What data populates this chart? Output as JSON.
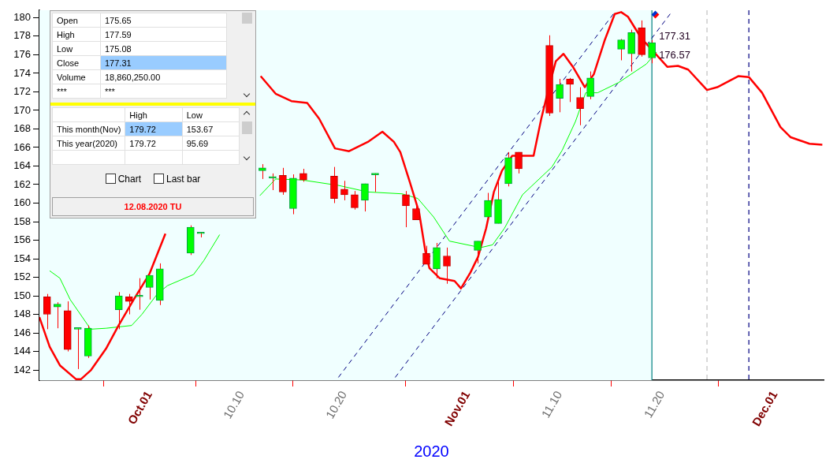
{
  "chart_data": {
    "type": "candlestick",
    "xlabel": "2020",
    "x": [
      "2020-09-21",
      "2020-09-22",
      "2020-09-23",
      "2020-09-24",
      "2020-09-25",
      "2020-09-28",
      "2020-09-29",
      "2020-09-30",
      "2020-10-01",
      "2020-10-02",
      "2020-10-05",
      "2020-10-06",
      "2020-10-12",
      "2020-10-13",
      "2020-10-14",
      "2020-10-15",
      "2020-10-16",
      "2020-10-19",
      "2020-10-20",
      "2020-10-21",
      "2020-10-22",
      "2020-10-23",
      "2020-10-26",
      "2020-10-27",
      "2020-10-28",
      "2020-10-29",
      "2020-10-30",
      "2020-11-02",
      "2020-11-03",
      "2020-11-04",
      "2020-11-05",
      "2020-11-06",
      "2020-11-09",
      "2020-11-10",
      "2020-11-11",
      "2020-11-12",
      "2020-11-13",
      "2020-11-16",
      "2020-11-17",
      "2020-11-18",
      "2020-11-19"
    ],
    "ohlc": [
      [
        149.9,
        150.2,
        146.4,
        148.0
      ],
      [
        148.8,
        149.3,
        146.5,
        149.1
      ],
      [
        148.4,
        149.4,
        144.0,
        144.2
      ],
      [
        146.4,
        146.5,
        142.1,
        146.4
      ],
      [
        143.5,
        146.8,
        143.3,
        146.5
      ],
      [
        148.5,
        150.4,
        146.4,
        150.0
      ],
      [
        149.9,
        150.2,
        148.0,
        149.4
      ],
      [
        149.9,
        151.9,
        148.5,
        149.9
      ],
      [
        150.9,
        152.2,
        149.6,
        152.2
      ],
      [
        149.5,
        153.5,
        149.0,
        152.9
      ],
      [
        154.6,
        157.6,
        154.4,
        157.4
      ],
      [
        156.7,
        156.8,
        156.3,
        156.7
      ],
      [
        163.5,
        164.2,
        162.6,
        163.8
      ],
      [
        162.7,
        163.2,
        161.4,
        162.7
      ],
      [
        163.0,
        163.8,
        160.9,
        161.2
      ],
      [
        159.4,
        163.1,
        158.8,
        162.7
      ],
      [
        163.2,
        163.7,
        162.3,
        162.5
      ],
      [
        162.9,
        163.9,
        160.0,
        160.5
      ],
      [
        161.5,
        162.4,
        160.3,
        160.9
      ],
      [
        160.9,
        161.3,
        159.3,
        159.5
      ],
      [
        160.3,
        162.1,
        159.1,
        162.1
      ],
      [
        163.05,
        163.2,
        161.2,
        163.05
      ],
      [
        160.9,
        161.3,
        157.4,
        159.7
      ],
      [
        159.4,
        160.0,
        158.2,
        158.2
      ],
      [
        154.6,
        155.4,
        153.4,
        153.4
      ],
      [
        152.9,
        155.7,
        151.9,
        155.2
      ],
      [
        154.3,
        155.2,
        151.3,
        153.2
      ],
      [
        154.9,
        155.9,
        153.5,
        155.9
      ],
      [
        158.5,
        161.1,
        158.0,
        160.3
      ],
      [
        157.8,
        162.3,
        157.8,
        160.4
      ],
      [
        162.1,
        165.5,
        161.8,
        164.9
      ],
      [
        165.5,
        165.5,
        163.2,
        163.7
      ],
      [
        177.0,
        178.1,
        169.4,
        169.7
      ],
      [
        171.3,
        173.4,
        169.8,
        172.8
      ],
      [
        173.4,
        173.5,
        170.9,
        172.8
      ],
      [
        171.4,
        172.5,
        168.4,
        170.2
      ],
      [
        171.5,
        174.2,
        171.2,
        173.5
      ],
      [
        176.6,
        177.7,
        175.4,
        177.6
      ],
      [
        176.1,
        178.7,
        174.2,
        178.4
      ],
      [
        178.9,
        179.7,
        175.8,
        176.0
      ],
      [
        175.65,
        177.59,
        175.08,
        177.31
      ]
    ],
    "series": [
      {
        "type": "line",
        "color": "#ff0000",
        "line_style": "solid",
        "x": [
          "2020-09-20T06:00",
          "2020-09-21T06:00",
          "2020-09-22T06:00",
          "2020-09-23T20:00",
          "2020-09-24T07:00",
          "2020-09-25T07:00",
          "2020-09-26T18:00",
          "2020-09-27T22:00",
          "2020-09-29T11:00",
          "2020-10-01",
          "2020-10-02T13:00",
          "2020-10-07",
          "2020-10-11T20:00",
          "2020-10-13T07:00",
          "2020-10-14T20:00",
          "2020-10-16T09:00",
          "2020-10-17T13:00",
          "2020-10-19T02:00",
          "2020-10-20T11:00",
          "2020-10-22T07:00",
          "2020-10-23T17:00",
          "2020-10-24T20:00",
          "2020-10-25T11:00",
          "2020-10-26T09:00",
          "2020-10-27T07:00",
          "2020-10-27T22:00",
          "2020-10-28T07:00",
          "2020-10-29T07:00",
          "2020-10-30T18:00",
          "2020-10-31T09:00",
          "2020-11-01T07:00",
          "2020-11-02T01:00",
          "2020-11-02T20:00",
          "2020-11-03T14:00",
          "2020-11-04T09:00",
          "2020-11-05T09:00",
          "2020-11-07T11:00",
          "2020-11-08T05:00",
          "2020-11-08T23:00",
          "2020-11-09T15:00",
          "2020-11-10T09:00",
          "2020-11-11T07:00",
          "2020-11-12T11:00",
          "2020-11-13T08:00",
          "2020-11-14T09:00",
          "2020-11-15T09:00",
          "2020-11-16",
          "2020-11-16T16:00",
          "2020-11-17T23:00",
          "2020-11-20T12:00",
          "2020-11-21T13:00",
          "2020-11-22T13:00",
          "2020-11-24T09:00",
          "2020-11-25T09:00",
          "2020-11-27T11:00",
          "2020-11-28T11:00",
          "2020-11-29T18:00",
          "2020-12-01T13:00",
          "2020-12-02T13:00",
          "2020-12-04T09:00",
          "2020-12-05T15:00"
        ],
        "values": [
          147.7,
          144.5,
          142.5,
          141.0,
          141.0,
          142.0,
          144.3,
          146.7,
          149.6,
          152.4,
          156.7,
          null,
          173.7,
          171.8,
          171.0,
          170.8,
          169.1,
          165.9,
          165.6,
          166.6,
          167.7,
          166.6,
          165.5,
          162.3,
          159.0,
          154.7,
          153.0,
          151.9,
          151.6,
          150.8,
          152.5,
          154.2,
          157.3,
          161.2,
          163.5,
          165.1,
          165.1,
          169.1,
          172.5,
          175.3,
          176.1,
          174.7,
          172.5,
          173.9,
          177.5,
          180.4,
          180.6,
          180.1,
          177.8,
          174.7,
          174.8,
          174.4,
          172.2,
          172.5,
          173.7,
          173.6,
          171.9,
          168.2,
          167.1,
          166.4,
          166.3
        ]
      },
      {
        "type": "line",
        "color": "#00ff00",
        "line_style": "solid",
        "x": [
          "2020-09-21T06:00",
          "2020-09-22T06:00",
          "2020-09-23T06:00",
          "2020-09-25T06:00",
          "2020-09-26T18:00",
          "2020-09-29T06:00",
          "2020-09-30T06:00",
          "2020-10-01T18:00",
          "2020-10-02T18:00",
          "2020-10-05T07:00",
          "2020-10-06T07:00",
          "2020-10-07T20:00",
          "2020-10-09",
          "2020-10-11T18:00",
          "2020-10-13T07:00",
          "2020-10-15T20:00",
          "2020-10-19T11:00",
          "2020-10-22T07:00",
          "2020-10-25T15:00",
          "2020-10-27T04:00",
          "2020-10-28T17:00",
          "2020-10-30T06:00",
          "2020-11-02T07:00",
          "2020-11-03T11:00",
          "2020-11-04T15:00",
          "2020-11-06T09:00",
          "2020-11-09T06:00",
          "2020-11-10T06:00",
          "2020-11-11T13:00",
          "2020-11-12T13:00",
          "2020-11-13T17:00",
          "2020-11-15T18:00",
          "2020-11-18T11:00",
          "2020-11-19T11:00"
        ],
        "values": [
          152.7,
          151.9,
          149.6,
          146.4,
          146.5,
          146.8,
          148.0,
          150.2,
          151.1,
          152.3,
          153.8,
          156.6,
          null,
          160.8,
          162.6,
          162.5,
          161.9,
          161.2,
          161.0,
          160.5,
          158.5,
          155.9,
          155.2,
          155.5,
          157.3,
          160.9,
          163.9,
          165.7,
          168.8,
          171.9,
          171.9,
          173.0,
          175.0,
          176.3
        ]
      },
      {
        "type": "line",
        "color": "#000080",
        "line_style": "dashed",
        "x": [
          "2020-10-19T10:00",
          "2020-11-15T09:00"
        ],
        "values": [
          141.2,
          180.6
        ]
      },
      {
        "type": "line",
        "color": "#000080",
        "line_style": "dashed",
        "x": [
          "2020-10-24T23:00",
          "2020-11-20T22:00"
        ],
        "values": [
          141.2,
          180.6
        ]
      }
    ],
    "xlim": [
      "2020-09-20T06:00",
      "2020-12-05T18:00"
    ],
    "xticks": [
      {
        "value": "2020-10-01",
        "label": "Oct.01"
      },
      {
        "value": "2020-10-10",
        "label": "10.10"
      },
      {
        "value": "2020-10-20",
        "label": "10.20"
      },
      {
        "value": "2020-11-01",
        "label": "Nov.01"
      },
      {
        "value": "2020-11-10",
        "label": "11.10"
      },
      {
        "value": "2020-11-20",
        "label": "11.20"
      },
      {
        "value": "2020-12-01",
        "label": "Dec.01"
      }
    ],
    "ylim": [
      140.9,
      180.8
    ],
    "yticks": [
      142,
      144,
      146,
      148,
      150,
      152,
      154,
      156,
      158,
      160,
      162,
      164,
      166,
      168,
      170,
      172,
      174,
      176,
      178,
      180
    ],
    "bands": [
      {
        "axis": "x",
        "from": "2020-09-20T06:00",
        "to": "2020-11-19",
        "color": "#f0ffff"
      }
    ],
    "ref_lines": [
      {
        "axis": "x",
        "value": "2020-11-19",
        "color": "#008080",
        "line_style": "solid"
      },
      {
        "axis": "x",
        "value": "2020-11-24T09:00",
        "color": "#c0c0c0",
        "line_style": "dashed"
      },
      {
        "axis": "x",
        "value": "2020-11-28T11:00",
        "color": "#000080",
        "line_style": "dashed"
      }
    ],
    "annotations": [
      "Open",
      "175.65",
      "High",
      "177.59",
      "Low",
      "175.08",
      "Close",
      "177.31",
      "Volume",
      "18,860,250.00",
      "***",
      "***",
      "High",
      "Low",
      "This month(Nov)",
      "179.72",
      "153.67",
      "This year(2020)",
      "179.72",
      "95.69",
      "Chart",
      "Last bar",
      "12.08.2020 TU",
      {
        "text": "177.31",
        "x": "2020-11-19",
        "y": 177.31
      },
      {
        "text": "176.57",
        "x": "2020-11-19",
        "y": 176.57
      }
    ]
  }
}
